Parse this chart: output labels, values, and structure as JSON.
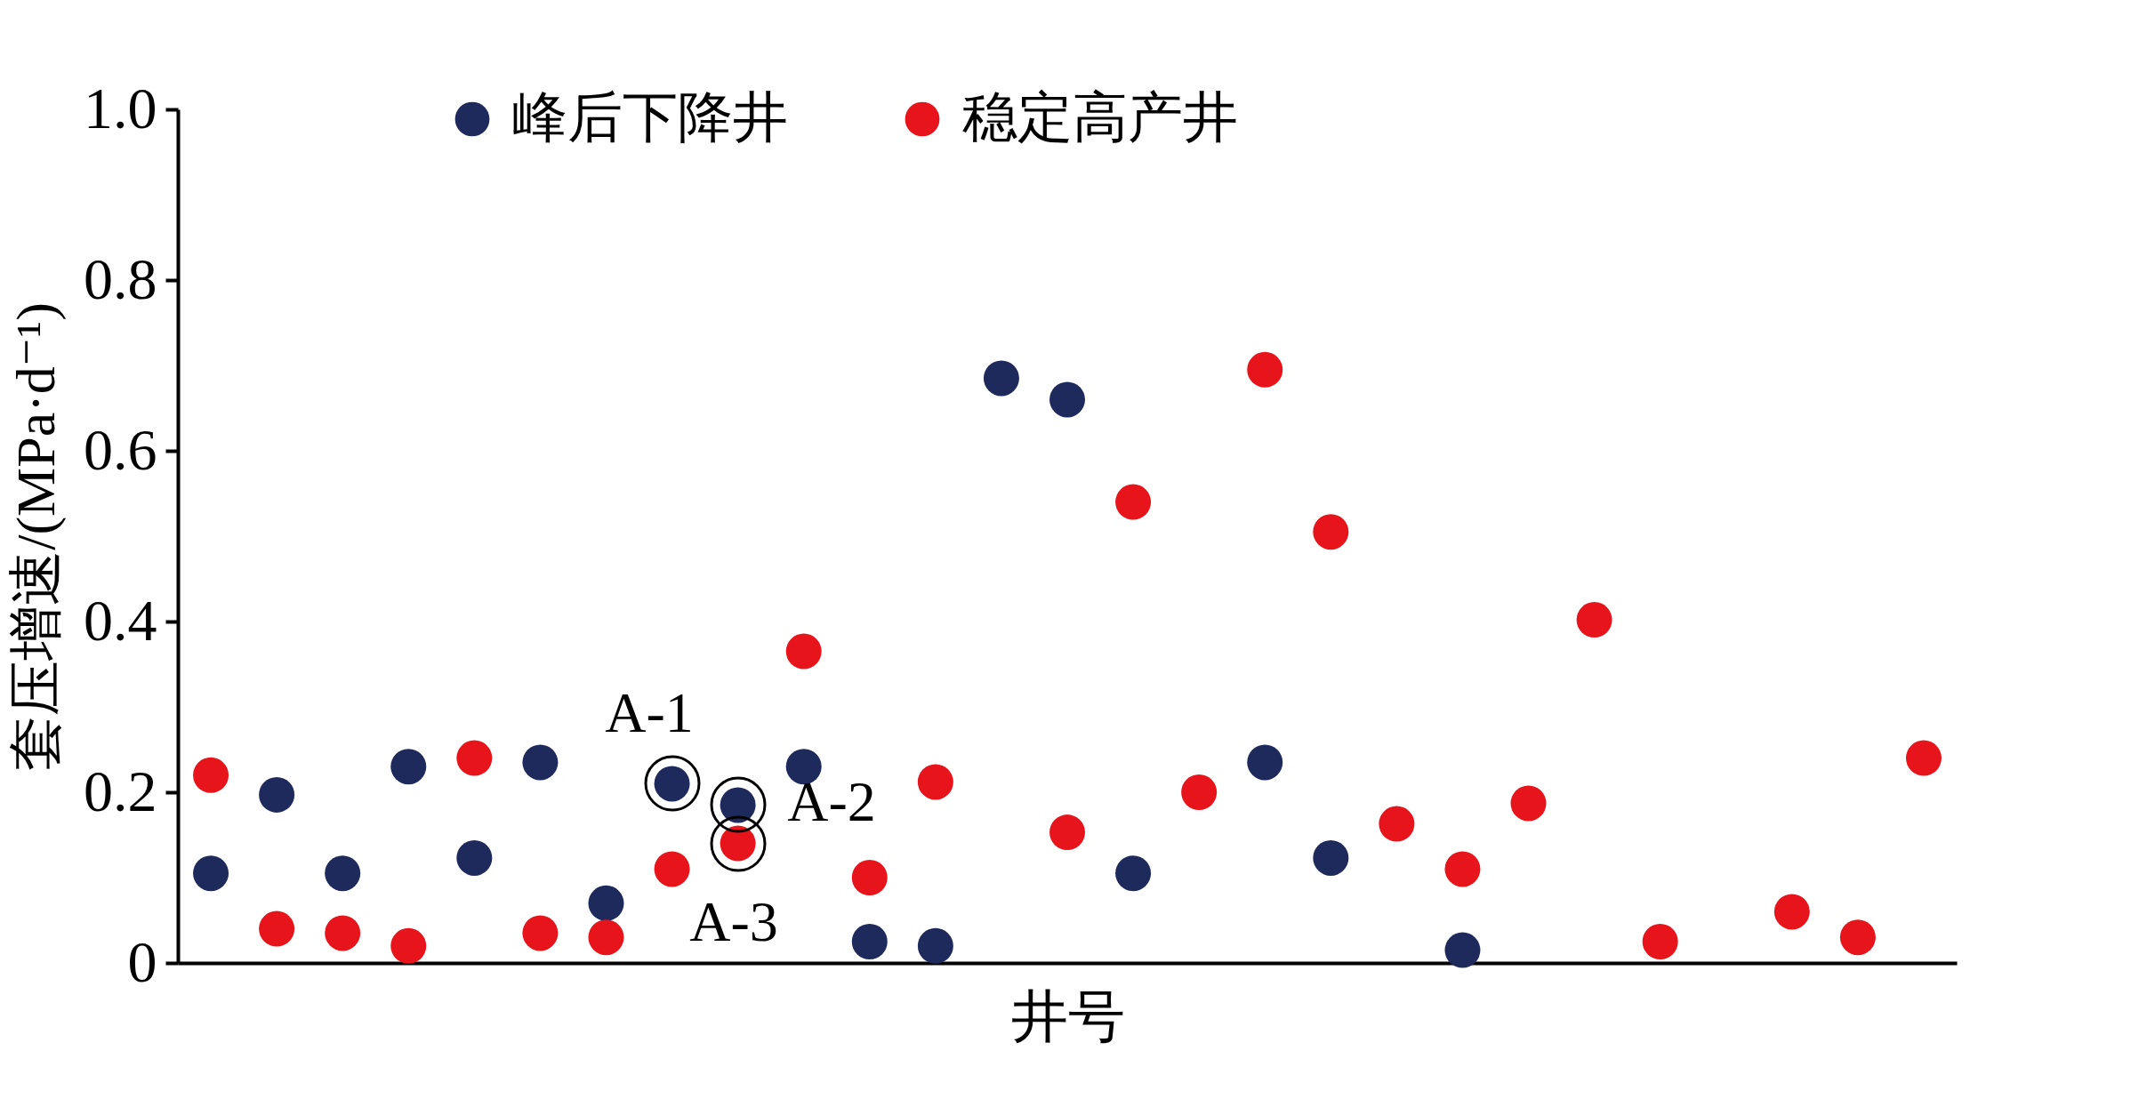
{
  "chart_data": {
    "type": "scatter",
    "xlabel": "井号",
    "ylabel": "套压增速/(MPa·d⁻¹)",
    "categories": [
      null,
      null,
      null,
      null,
      null,
      null,
      null,
      null,
      null,
      null,
      null,
      null,
      null,
      null,
      null,
      null,
      null,
      null,
      null,
      null,
      null,
      null,
      null,
      null,
      null,
      null,
      null
    ],
    "series": [
      {
        "name": "峰后下降井",
        "color": "#1f2a5c",
        "values": [
          0.105,
          0.197,
          0.105,
          0.23,
          0.123,
          0.235,
          0.07,
          0.21,
          0.185,
          0.23,
          0.025,
          0.02,
          0.685,
          0.66,
          0.105,
          null,
          0.235,
          0.123,
          null,
          0.015,
          null,
          null,
          null,
          null,
          null,
          null,
          null
        ]
      },
      {
        "name": "稳定高产井",
        "color": "#e8141c",
        "values": [
          0.22,
          0.04,
          0.035,
          0.02,
          0.24,
          0.035,
          0.03,
          0.11,
          0.14,
          0.365,
          0.1,
          0.212,
          null,
          0.153,
          0.54,
          0.2,
          0.695,
          0.505,
          0.163,
          0.11,
          0.187,
          0.402,
          0.025,
          null,
          0.06,
          0.03,
          0.24
        ]
      }
    ],
    "annotations": [
      "A-1",
      "A-2",
      "A-3"
    ],
    "ylim": [
      0,
      1
    ],
    "yticks": [
      0,
      0.2,
      0.4,
      0.6,
      0.8,
      {
        "value": 1,
        "label": "1.0"
      }
    ],
    "tick_labels": "y",
    "grid": false,
    "legend": "top",
    "marker": "circle"
  }
}
